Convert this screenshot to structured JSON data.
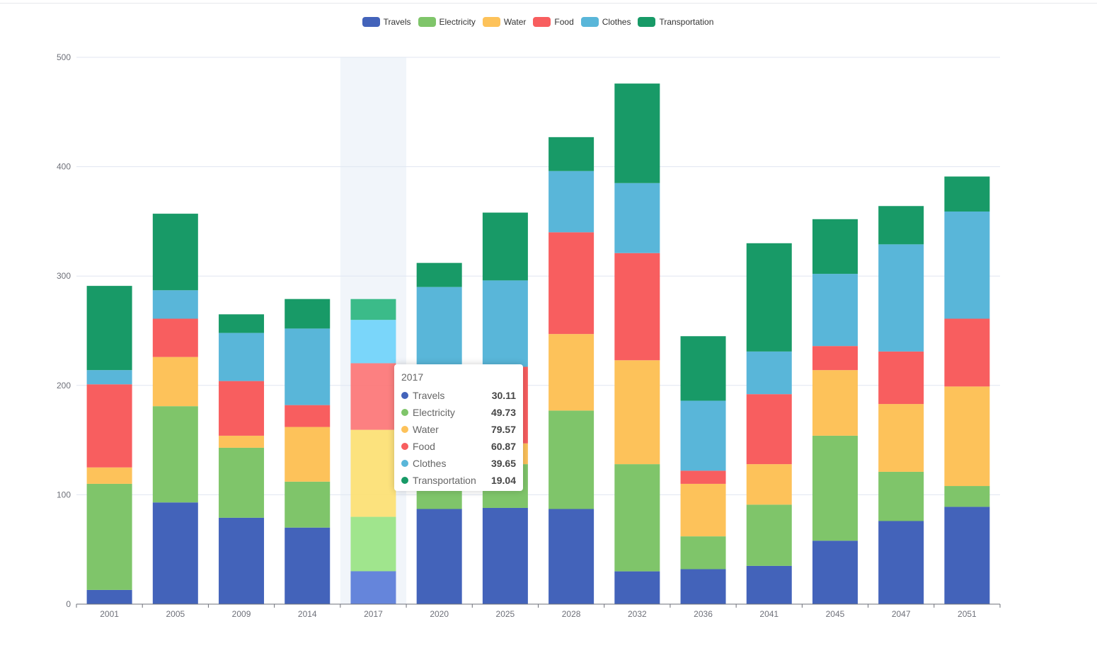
{
  "chart_data": {
    "type": "bar",
    "stacked": true,
    "categories": [
      "2001",
      "2005",
      "2009",
      "2014",
      "2017",
      "2020",
      "2025",
      "2028",
      "2032",
      "2036",
      "2041",
      "2045",
      "2047",
      "2051"
    ],
    "series": [
      {
        "name": "Travels",
        "color": "#4363ba",
        "values": [
          13,
          93,
          79,
          70,
          30.11,
          87,
          88,
          87,
          30,
          32,
          35,
          58,
          76,
          89
        ]
      },
      {
        "name": "Electricity",
        "color": "#7fc56a",
        "values": [
          97,
          88,
          64,
          42,
          49.73,
          40,
          40,
          90,
          98,
          30,
          56,
          96,
          45,
          19
        ]
      },
      {
        "name": "Water",
        "color": "#fdc25a",
        "values": [
          15,
          45,
          11,
          50,
          79.57,
          8,
          19,
          70,
          95,
          48,
          37,
          60,
          62,
          91
        ]
      },
      {
        "name": "Food",
        "color": "#f85e5f",
        "values": [
          76,
          35,
          50,
          20,
          60.87,
          20,
          70,
          93,
          98,
          12,
          64,
          22,
          48,
          62
        ]
      },
      {
        "name": "Clothes",
        "color": "#59b6d9",
        "values": [
          13,
          26,
          44,
          70,
          39.65,
          135,
          79,
          56,
          64,
          64,
          39,
          66,
          98,
          98
        ]
      },
      {
        "name": "Transportation",
        "color": "#189a67",
        "values": [
          77,
          70,
          17,
          27,
          19.04,
          22,
          62,
          31,
          91,
          59,
          99,
          50,
          35,
          32
        ]
      }
    ],
    "y_axis": {
      "min": 0,
      "max": 500,
      "ticks": [
        0,
        100,
        200,
        300,
        400,
        500
      ]
    },
    "highlight_index": 4,
    "legend_position": "top-center"
  },
  "tooltip": {
    "title": "2017",
    "rows": [
      {
        "name": "Travels",
        "value": "30.11",
        "color": "#4363ba"
      },
      {
        "name": "Electricity",
        "value": "49.73",
        "color": "#7fc56a"
      },
      {
        "name": "Water",
        "value": "79.57",
        "color": "#fdc25a"
      },
      {
        "name": "Food",
        "value": "60.87",
        "color": "#f85e5f"
      },
      {
        "name": "Clothes",
        "value": "39.65",
        "color": "#59b6d9"
      },
      {
        "name": "Transportation",
        "value": "19.04",
        "color": "#189a67"
      }
    ]
  },
  "colors": {
    "highlight_band": "#f1f5fa",
    "grid": "#e0e6f1",
    "axis": "#6e7079"
  }
}
